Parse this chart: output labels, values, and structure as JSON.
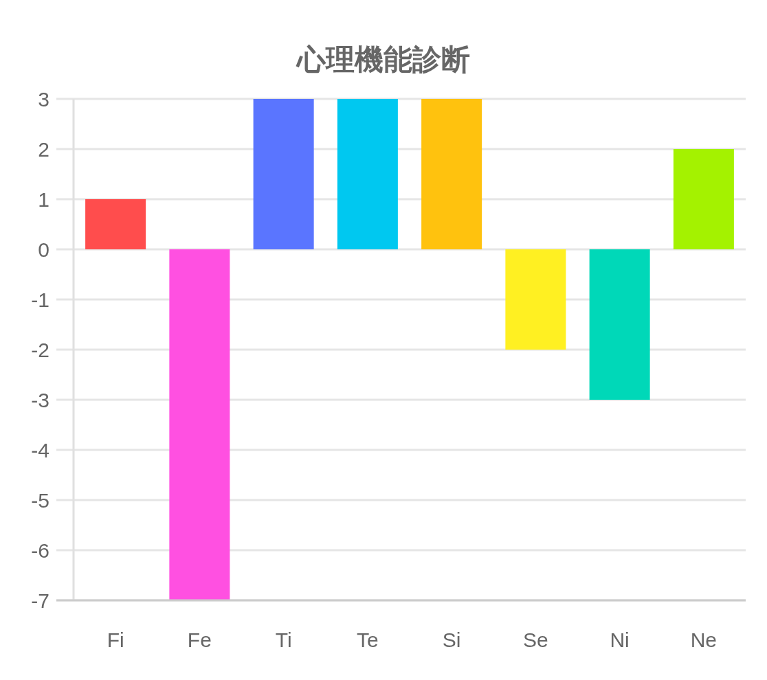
{
  "chart_data": {
    "type": "bar",
    "title": "心理機能診断",
    "categories": [
      "Fi",
      "Fe",
      "Ti",
      "Te",
      "Si",
      "Se",
      "Ni",
      "Ne"
    ],
    "values": [
      1,
      -7,
      3,
      3,
      3,
      -2,
      -3,
      2
    ],
    "colors": [
      "#ff4d4d",
      "#ff50e1",
      "#5a75ff",
      "#00c8f0",
      "#ffc20e",
      "#fff022",
      "#00d8b8",
      "#a4f200"
    ],
    "ylim": [
      -7,
      3
    ],
    "yticks": [
      -7,
      -6,
      -5,
      -4,
      -3,
      -2,
      -1,
      0,
      1,
      2,
      3
    ],
    "grid": "y"
  }
}
